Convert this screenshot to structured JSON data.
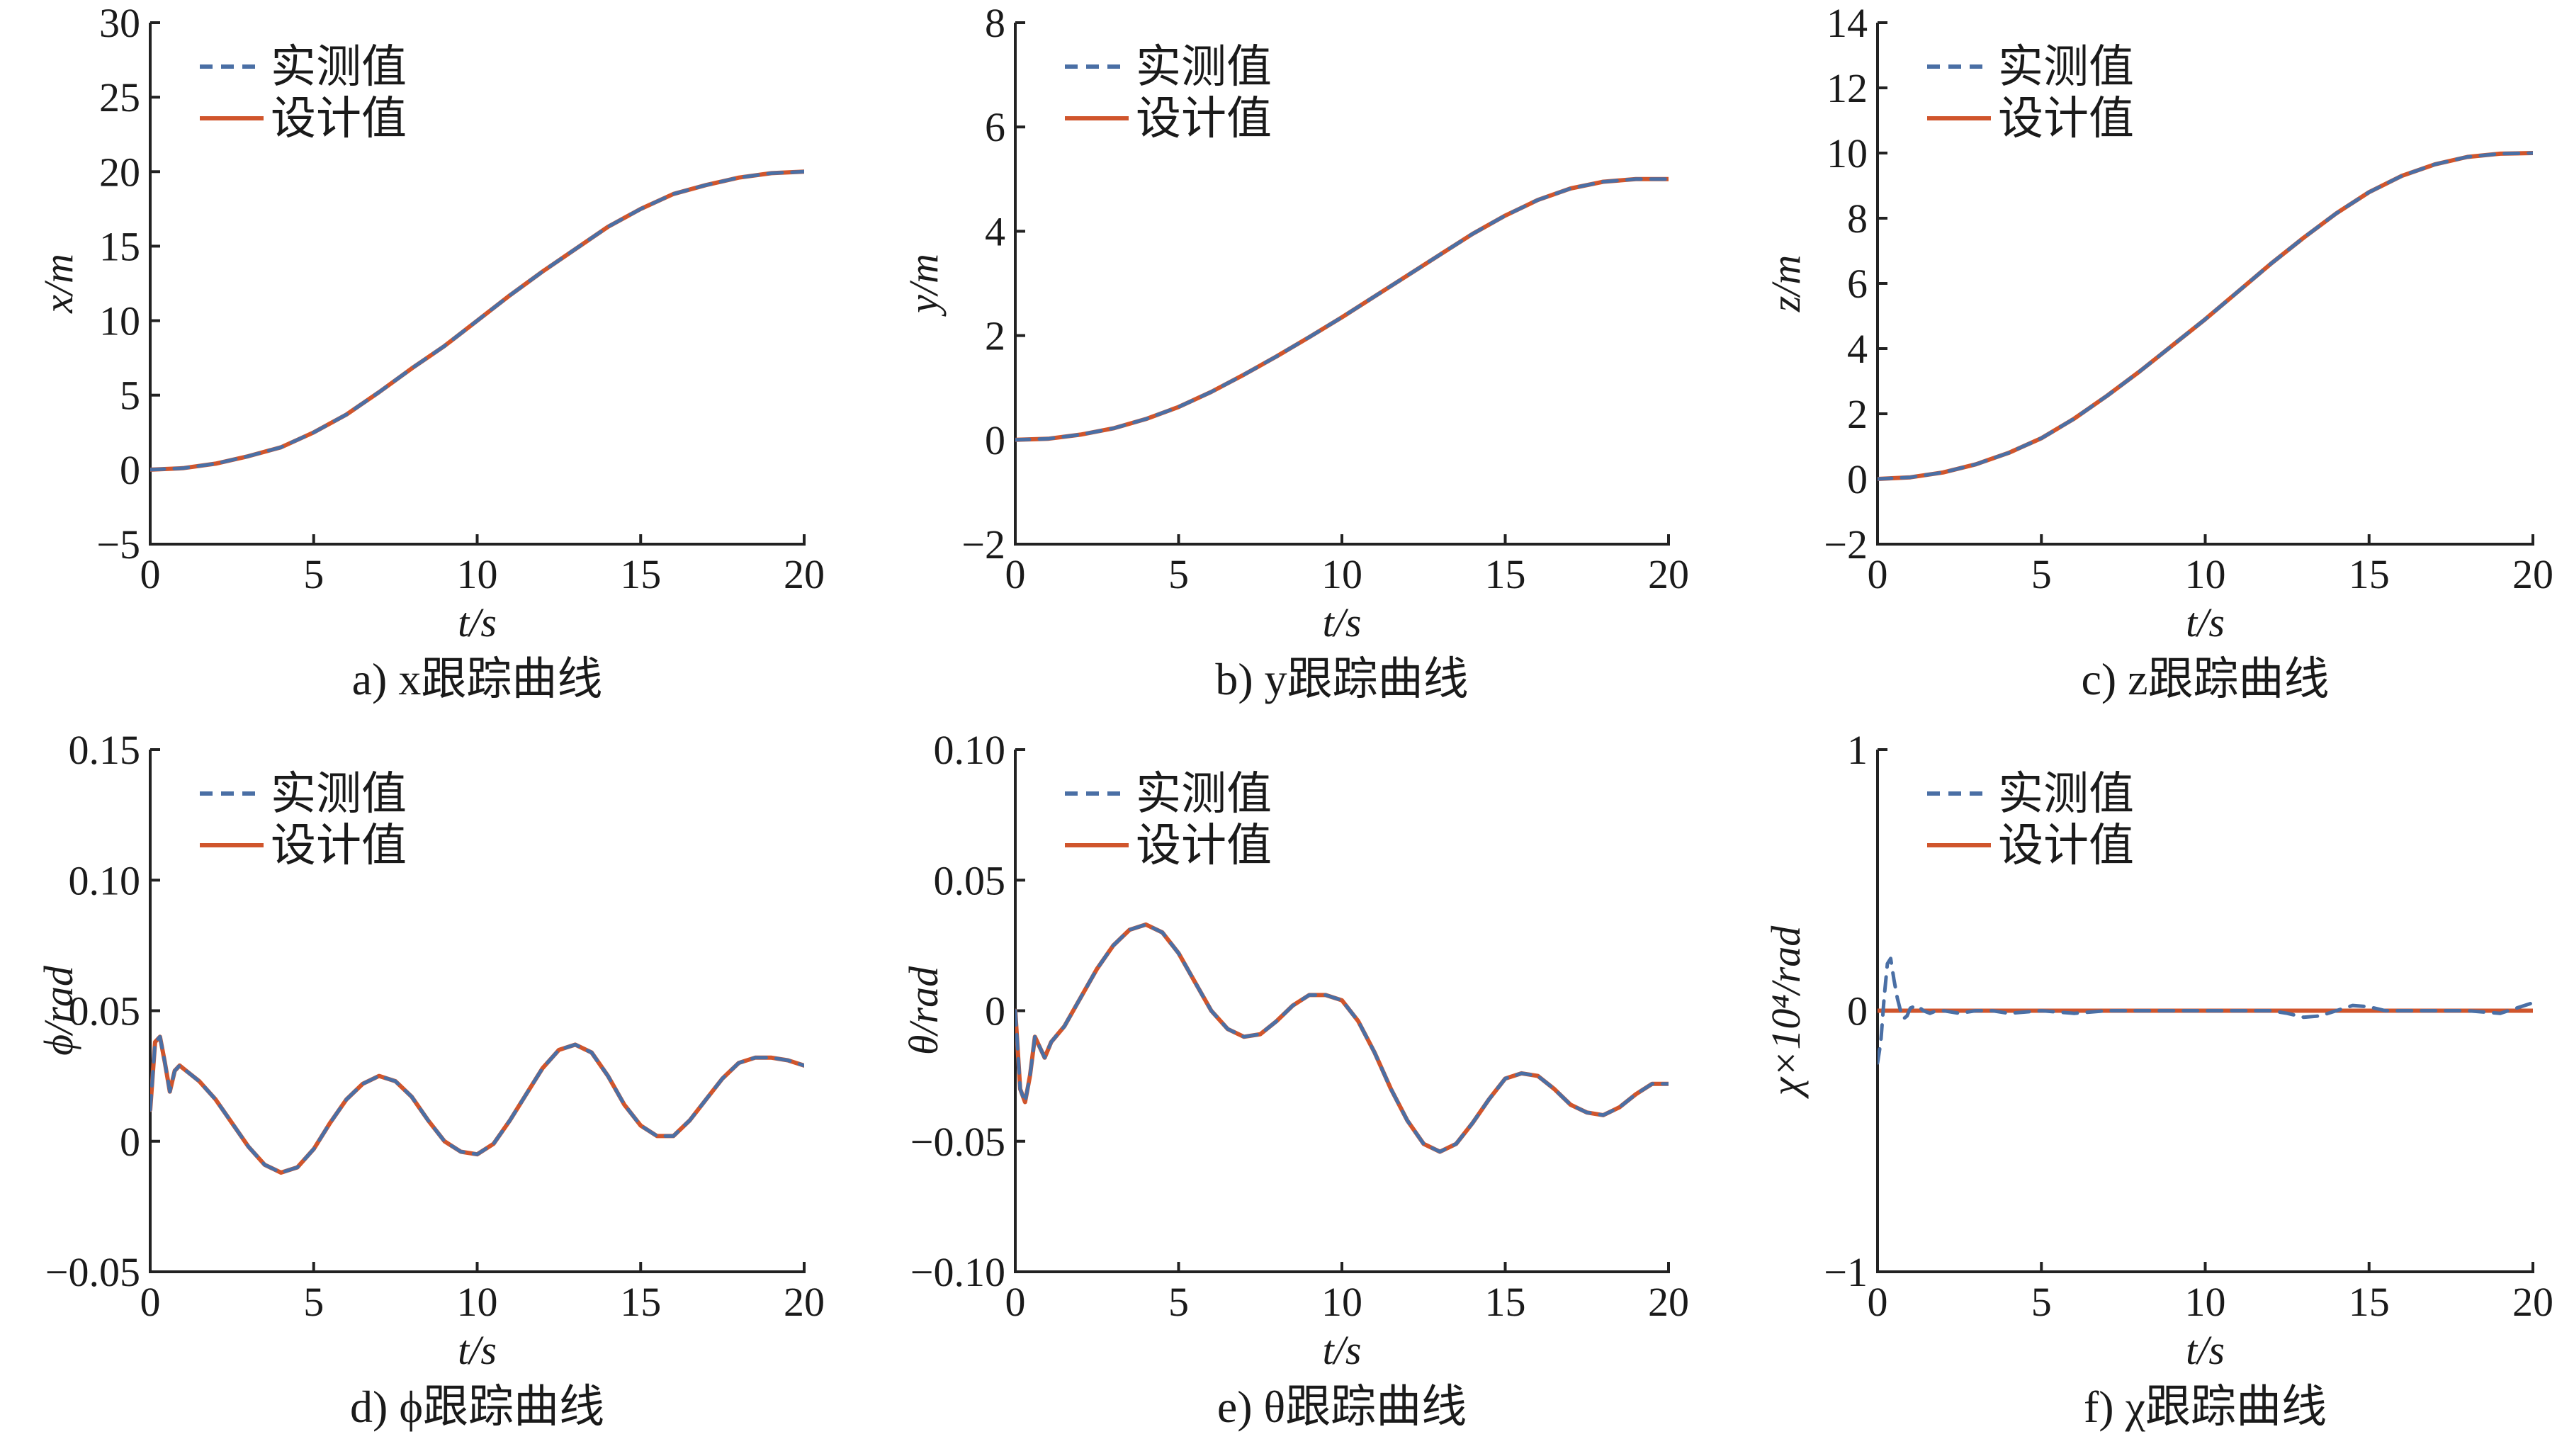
{
  "colors": {
    "measured": "#4a6fa5",
    "design": "#d0552c",
    "axis": "#222222",
    "text": "#1a1a1a",
    "background": "#ffffff"
  },
  "legend": {
    "measured": "实测值",
    "design": "设计值"
  },
  "chart_data": [
    {
      "id": "a",
      "type": "line",
      "caption": "a) x跟踪曲线",
      "xlabel": "t/s",
      "ylabel": "x/m",
      "xlim": [
        0,
        20
      ],
      "ylim": [
        -5,
        30
      ],
      "xticks": [
        0,
        5,
        10,
        15,
        20
      ],
      "xtick_labels": [
        "0",
        "5",
        "10",
        "15",
        "20"
      ],
      "yticks": [
        -5,
        0,
        5,
        10,
        15,
        20,
        25,
        30
      ],
      "ytick_labels": [
        "−5",
        "0",
        "5",
        "10",
        "15",
        "20",
        "25",
        "30"
      ],
      "x": [
        0,
        1,
        2,
        3,
        4,
        5,
        6,
        7,
        8,
        9,
        10,
        11,
        12,
        13,
        14,
        15,
        16,
        17,
        18,
        19,
        20
      ],
      "series": [
        {
          "name": "实测值",
          "style": "dashed",
          "values": [
            0,
            0.1,
            0.4,
            0.9,
            1.5,
            2.5,
            3.7,
            5.2,
            6.8,
            8.3,
            10.0,
            11.7,
            13.3,
            14.8,
            16.3,
            17.5,
            18.5,
            19.1,
            19.6,
            19.9,
            20.0
          ]
        },
        {
          "name": "设计值",
          "style": "solid",
          "values": [
            0,
            0.1,
            0.4,
            0.9,
            1.5,
            2.5,
            3.7,
            5.2,
            6.8,
            8.3,
            10.0,
            11.7,
            13.3,
            14.8,
            16.3,
            17.5,
            18.5,
            19.1,
            19.6,
            19.9,
            20.0
          ]
        }
      ],
      "legend_position": "top-left",
      "grid": false
    },
    {
      "id": "b",
      "type": "line",
      "caption": "b) y跟踪曲线",
      "xlabel": "t/s",
      "ylabel": "y/m",
      "xlim": [
        0,
        20
      ],
      "ylim": [
        -2,
        8
      ],
      "xticks": [
        0,
        5,
        10,
        15,
        20
      ],
      "xtick_labels": [
        "0",
        "5",
        "10",
        "15",
        "20"
      ],
      "yticks": [
        -2,
        0,
        2,
        4,
        6,
        8
      ],
      "ytick_labels": [
        "−2",
        "0",
        "2",
        "4",
        "6",
        "8"
      ],
      "x": [
        0,
        1,
        2,
        3,
        4,
        5,
        6,
        7,
        8,
        9,
        10,
        11,
        12,
        13,
        14,
        15,
        16,
        17,
        18,
        19,
        20
      ],
      "series": [
        {
          "name": "实测值",
          "style": "dashed",
          "values": [
            0,
            0.02,
            0.1,
            0.22,
            0.4,
            0.63,
            0.92,
            1.25,
            1.6,
            1.97,
            2.35,
            2.75,
            3.15,
            3.55,
            3.95,
            4.3,
            4.6,
            4.82,
            4.95,
            5.0,
            5.0
          ]
        },
        {
          "name": "设计值",
          "style": "solid",
          "values": [
            0,
            0.02,
            0.1,
            0.22,
            0.4,
            0.63,
            0.92,
            1.25,
            1.6,
            1.97,
            2.35,
            2.75,
            3.15,
            3.55,
            3.95,
            4.3,
            4.6,
            4.82,
            4.95,
            5.0,
            5.0
          ]
        }
      ],
      "legend_position": "top-left",
      "grid": false
    },
    {
      "id": "c",
      "type": "line",
      "caption": "c) z跟踪曲线",
      "xlabel": "t/s",
      "ylabel": "z/m",
      "xlim": [
        0,
        20
      ],
      "ylim": [
        -2,
        14
      ],
      "xticks": [
        0,
        5,
        10,
        15,
        20
      ],
      "xtick_labels": [
        "0",
        "5",
        "10",
        "15",
        "20"
      ],
      "yticks": [
        -2,
        0,
        2,
        4,
        6,
        8,
        10,
        12,
        14
      ],
      "ytick_labels": [
        "−2",
        "0",
        "2",
        "4",
        "6",
        "8",
        "10",
        "12",
        "14"
      ],
      "x": [
        0,
        1,
        2,
        3,
        4,
        5,
        6,
        7,
        8,
        9,
        10,
        11,
        12,
        13,
        14,
        15,
        16,
        17,
        18,
        19,
        20
      ],
      "series": [
        {
          "name": "实测值",
          "style": "dashed",
          "values": [
            0,
            0.05,
            0.2,
            0.45,
            0.8,
            1.25,
            1.85,
            2.55,
            3.3,
            4.1,
            4.9,
            5.75,
            6.6,
            7.4,
            8.15,
            8.8,
            9.3,
            9.65,
            9.88,
            9.98,
            10.0
          ]
        },
        {
          "name": "设计值",
          "style": "solid",
          "values": [
            0,
            0.05,
            0.2,
            0.45,
            0.8,
            1.25,
            1.85,
            2.55,
            3.3,
            4.1,
            4.9,
            5.75,
            6.6,
            7.4,
            8.15,
            8.8,
            9.3,
            9.65,
            9.88,
            9.98,
            10.0
          ]
        }
      ],
      "legend_position": "top-left",
      "grid": false
    },
    {
      "id": "d",
      "type": "line",
      "caption": "d) ϕ跟踪曲线",
      "xlabel": "t/s",
      "ylabel": "ϕ/rad",
      "xlim": [
        0,
        20
      ],
      "ylim": [
        -0.05,
        0.15
      ],
      "xticks": [
        0,
        5,
        10,
        15,
        20
      ],
      "xtick_labels": [
        "0",
        "5",
        "10",
        "15",
        "20"
      ],
      "yticks": [
        -0.05,
        0,
        0.05,
        0.1,
        0.15
      ],
      "ytick_labels": [
        "−0.05",
        "0",
        "0.05",
        "0.10",
        "0.15"
      ],
      "x": [
        0,
        0.15,
        0.3,
        0.45,
        0.6,
        0.75,
        0.9,
        1.1,
        1.5,
        2,
        2.5,
        3,
        3.5,
        4,
        4.5,
        5,
        5.5,
        6,
        6.5,
        7,
        7.5,
        8,
        8.5,
        9,
        9.5,
        10,
        10.5,
        11,
        11.5,
        12,
        12.5,
        13,
        13.5,
        14,
        14.5,
        15,
        15.5,
        16,
        16.5,
        17,
        17.5,
        18,
        18.5,
        19,
        19.5,
        20
      ],
      "series": [
        {
          "name": "实测值",
          "style": "dashed",
          "values": [
            0.012,
            0.038,
            0.04,
            0.03,
            0.019,
            0.027,
            0.029,
            0.027,
            0.023,
            0.016,
            0.007,
            -0.002,
            -0.009,
            -0.012,
            -0.01,
            -0.003,
            0.007,
            0.016,
            0.022,
            0.025,
            0.023,
            0.017,
            0.008,
            0.0,
            -0.004,
            -0.005,
            -0.001,
            0.008,
            0.018,
            0.028,
            0.035,
            0.037,
            0.034,
            0.025,
            0.014,
            0.006,
            0.002,
            0.002,
            0.008,
            0.016,
            0.024,
            0.03,
            0.032,
            0.032,
            0.031,
            0.029
          ]
        },
        {
          "name": "设计值",
          "style": "solid",
          "values": [
            0.012,
            0.038,
            0.04,
            0.03,
            0.019,
            0.027,
            0.029,
            0.027,
            0.023,
            0.016,
            0.007,
            -0.002,
            -0.009,
            -0.012,
            -0.01,
            -0.003,
            0.007,
            0.016,
            0.022,
            0.025,
            0.023,
            0.017,
            0.008,
            0.0,
            -0.004,
            -0.005,
            -0.001,
            0.008,
            0.018,
            0.028,
            0.035,
            0.037,
            0.034,
            0.025,
            0.014,
            0.006,
            0.002,
            0.002,
            0.008,
            0.016,
            0.024,
            0.03,
            0.032,
            0.032,
            0.031,
            0.029
          ]
        }
      ],
      "legend_position": "top-left",
      "grid": false
    },
    {
      "id": "e",
      "type": "line",
      "caption": "e) θ跟踪曲线",
      "xlabel": "t/s",
      "ylabel": "θ/rad",
      "xlim": [
        0,
        20
      ],
      "ylim": [
        -0.1,
        0.1
      ],
      "xticks": [
        0,
        5,
        10,
        15,
        20
      ],
      "xtick_labels": [
        "0",
        "5",
        "10",
        "15",
        "20"
      ],
      "yticks": [
        -0.1,
        -0.05,
        0,
        0.05,
        0.1
      ],
      "ytick_labels": [
        "−0.10",
        "−0.05",
        "0",
        "0.05",
        "0.10"
      ],
      "x": [
        0,
        0.15,
        0.3,
        0.45,
        0.6,
        0.75,
        0.9,
        1.1,
        1.5,
        2,
        2.5,
        3,
        3.5,
        4,
        4.5,
        5,
        5.5,
        6,
        6.5,
        7,
        7.5,
        8,
        8.5,
        9,
        9.5,
        10,
        10.5,
        11,
        11.5,
        12,
        12.5,
        13,
        13.5,
        14,
        14.5,
        15,
        15.5,
        16,
        16.5,
        17,
        17.5,
        18,
        18.5,
        19,
        19.5,
        20
      ],
      "series": [
        {
          "name": "实测值",
          "style": "dashed",
          "values": [
            0.0,
            -0.03,
            -0.035,
            -0.025,
            -0.01,
            -0.014,
            -0.018,
            -0.012,
            -0.006,
            0.005,
            0.016,
            0.025,
            0.031,
            0.033,
            0.03,
            0.022,
            0.011,
            0.0,
            -0.007,
            -0.01,
            -0.009,
            -0.004,
            0.002,
            0.006,
            0.006,
            0.004,
            -0.004,
            -0.016,
            -0.03,
            -0.042,
            -0.051,
            -0.054,
            -0.051,
            -0.043,
            -0.034,
            -0.026,
            -0.024,
            -0.025,
            -0.03,
            -0.036,
            -0.039,
            -0.04,
            -0.037,
            -0.032,
            -0.028,
            -0.028
          ]
        },
        {
          "name": "设计值",
          "style": "solid",
          "values": [
            0.0,
            -0.03,
            -0.035,
            -0.025,
            -0.01,
            -0.014,
            -0.018,
            -0.012,
            -0.006,
            0.005,
            0.016,
            0.025,
            0.031,
            0.033,
            0.03,
            0.022,
            0.011,
            0.0,
            -0.007,
            -0.01,
            -0.009,
            -0.004,
            0.002,
            0.006,
            0.006,
            0.004,
            -0.004,
            -0.016,
            -0.03,
            -0.042,
            -0.051,
            -0.054,
            -0.051,
            -0.043,
            -0.034,
            -0.026,
            -0.024,
            -0.025,
            -0.03,
            -0.036,
            -0.039,
            -0.04,
            -0.037,
            -0.032,
            -0.028,
            -0.028
          ]
        }
      ],
      "legend_position": "top-left",
      "grid": false
    },
    {
      "id": "f",
      "type": "line",
      "caption": "f) χ跟踪曲线",
      "xlabel": "t/s",
      "ylabel": "χ×10⁴/rad",
      "xlim": [
        0,
        20
      ],
      "ylim": [
        -1,
        1
      ],
      "xticks": [
        0,
        5,
        10,
        15,
        20
      ],
      "xtick_labels": [
        "0",
        "5",
        "10",
        "15",
        "20"
      ],
      "yticks": [
        -1,
        0,
        1
      ],
      "ytick_labels": [
        "−1",
        "0",
        "1"
      ],
      "x": [
        0,
        0.1,
        0.2,
        0.3,
        0.4,
        0.5,
        0.6,
        0.7,
        0.8,
        0.9,
        1.0,
        1.2,
        1.4,
        1.6,
        1.8,
        2,
        2.5,
        3,
        3.5,
        4,
        5,
        6,
        7,
        8,
        9,
        10,
        11,
        12,
        12.5,
        13,
        13.5,
        14,
        14.5,
        15,
        15.5,
        16,
        17,
        18,
        19,
        19.5,
        20
      ],
      "series": [
        {
          "name": "实测值",
          "style": "dashed",
          "values": [
            -0.2,
            -0.12,
            0.05,
            0.18,
            0.2,
            0.12,
            0.05,
            0.0,
            -0.03,
            -0.02,
            0.01,
            0.02,
            0.0,
            -0.01,
            0.0,
            0.0,
            -0.01,
            0.0,
            0.0,
            -0.01,
            0.0,
            -0.01,
            0.0,
            0.0,
            0.0,
            0.0,
            0.0,
            0.0,
            -0.01,
            -0.025,
            -0.02,
            0.0,
            0.02,
            0.015,
            0.0,
            0.0,
            0.0,
            0.0,
            -0.01,
            0.01,
            0.03
          ]
        },
        {
          "name": "设计值",
          "style": "solid",
          "values": [
            0,
            0,
            0,
            0,
            0,
            0,
            0,
            0,
            0,
            0,
            0,
            0,
            0,
            0,
            0,
            0,
            0,
            0,
            0,
            0,
            0,
            0,
            0,
            0,
            0,
            0,
            0,
            0,
            0,
            0,
            0,
            0,
            0,
            0,
            0,
            0,
            0,
            0,
            0,
            0,
            0
          ]
        }
      ],
      "legend_position": "top-left",
      "grid": false
    }
  ]
}
